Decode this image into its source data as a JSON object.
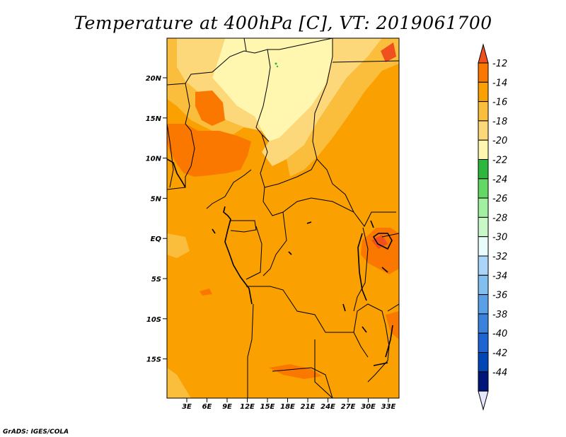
{
  "title": "Temperature at 400hPa [C], VT: 2019061700",
  "credit": "GrADS: IGES/COLA",
  "map": {
    "lat_ticks": [
      "20N",
      "15N",
      "10N",
      "5N",
      "EQ",
      "5S",
      "10S",
      "15S"
    ],
    "lon_ticks": [
      "3E",
      "6E",
      "9E",
      "12E",
      "15E",
      "18E",
      "21E",
      "24E",
      "27E",
      "30E",
      "33E"
    ]
  },
  "colorbar": {
    "labels": [
      "-12",
      "-14",
      "-16",
      "-18",
      "-20",
      "-22",
      "-24",
      "-26",
      "-28",
      "-30",
      "-32",
      "-34",
      "-36",
      "-38",
      "-40",
      "-42",
      "-44"
    ],
    "colors": [
      "#f0501e",
      "#fa7800",
      "#faa000",
      "#fabe3c",
      "#fcd87a",
      "#fff6b0",
      "#2db83d",
      "#64d864",
      "#a0f0a0",
      "#c8f8c8",
      "#e8fcfc",
      "#aad4f8",
      "#82beee",
      "#5aa0e6",
      "#3c82dc",
      "#1e64d2",
      "#0046b4",
      "#00147a",
      "#e6e6ff"
    ]
  }
}
